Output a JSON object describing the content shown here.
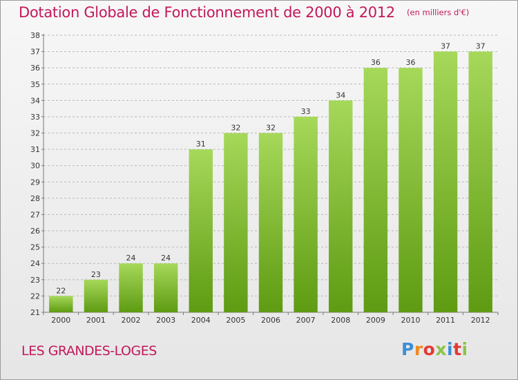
{
  "header": {
    "title": "Dotation Globale de Fonctionnement de 2000 à 2012",
    "subtitle": "(en milliers d'€)"
  },
  "footer": {
    "commune": "LES GRANDES-LOGES",
    "logo_text": "Proxiti"
  },
  "colors": {
    "accent": "#c2185b",
    "bar_light": "#a6d85a",
    "bar_dark": "#5e9b12",
    "logo_letters": [
      "#3a8fd6",
      "#f08a1c",
      "#e53935",
      "#8bc34a",
      "#3a8fd6",
      "#e53935",
      "#8bc34a"
    ]
  },
  "chart_data": {
    "type": "bar",
    "categories": [
      "2000",
      "2001",
      "2002",
      "2003",
      "2004",
      "2005",
      "2006",
      "2007",
      "2008",
      "2009",
      "2010",
      "2011",
      "2012"
    ],
    "values": [
      22,
      23,
      24,
      24,
      31,
      32,
      32,
      33,
      34,
      36,
      36,
      37,
      37
    ],
    "data_labels": [
      "22",
      "23",
      "24",
      "24",
      "31",
      "32",
      "32",
      "33",
      "34",
      "36",
      "36",
      "37",
      "37"
    ],
    "y_ticks": [
      "21",
      "22",
      "23",
      "24",
      "25",
      "26",
      "27",
      "28",
      "29",
      "30",
      "31",
      "32",
      "33",
      "34",
      "35",
      "36",
      "37",
      "38"
    ],
    "ylim": [
      21,
      38
    ],
    "title": "Dotation Globale de Fonctionnement de 2000 à 2012",
    "subtitle": "(en milliers d'€)",
    "xlabel": "",
    "ylabel": "",
    "grid": true,
    "legend": "none"
  }
}
